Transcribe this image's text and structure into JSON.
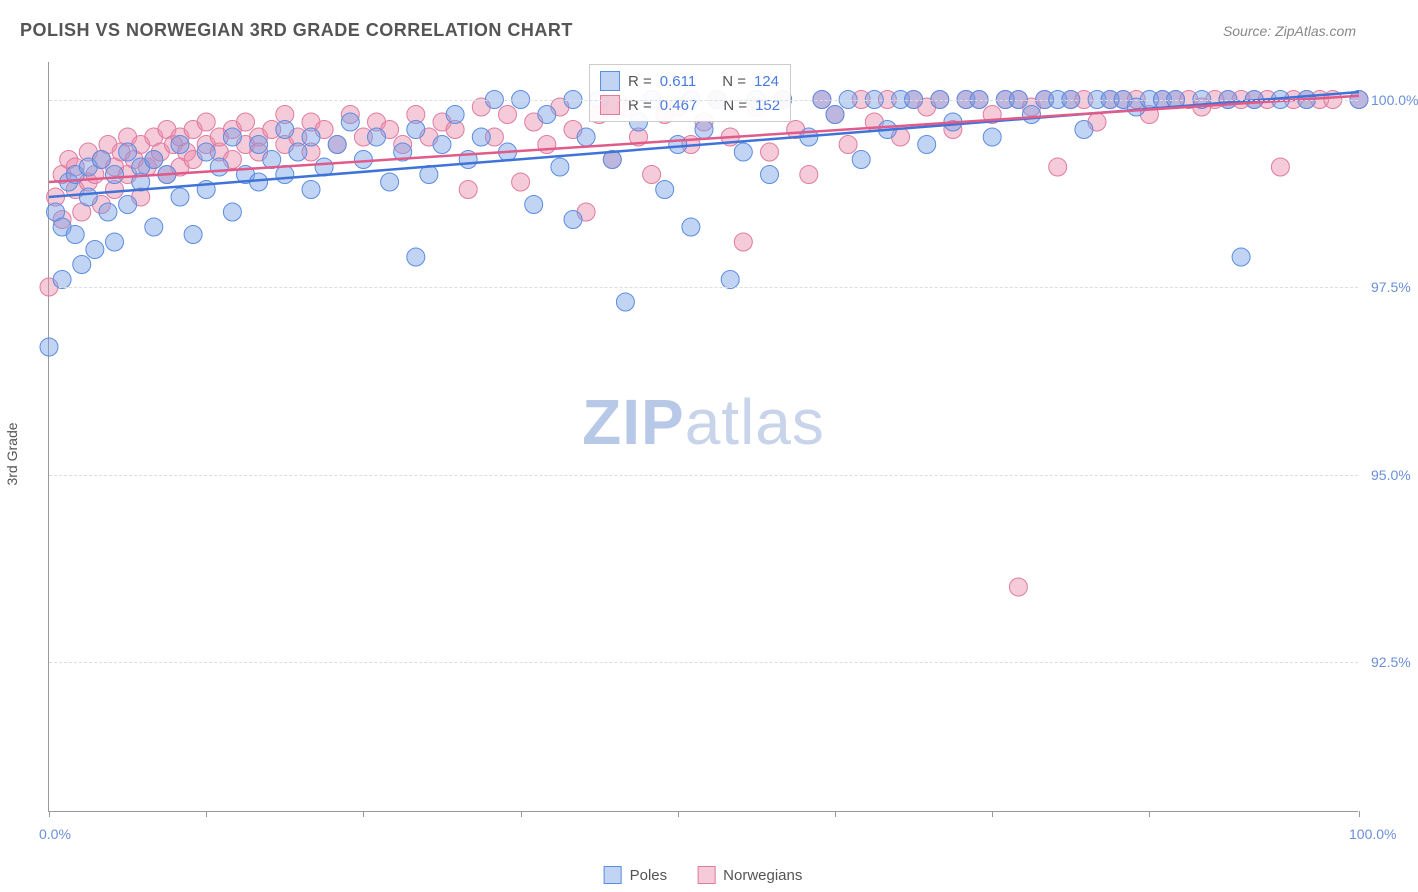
{
  "header": {
    "title": "POLISH VS NORWEGIAN 3RD GRADE CORRELATION CHART",
    "source": "Source: ZipAtlas.com"
  },
  "chart": {
    "type": "scatter",
    "ylabel": "3rd Grade",
    "xlim": [
      0,
      100
    ],
    "ylim": [
      90.5,
      100.5
    ],
    "yticks": [
      {
        "v": 92.5,
        "label": "92.5%"
      },
      {
        "v": 95.0,
        "label": "95.0%"
      },
      {
        "v": 97.5,
        "label": "97.5%"
      },
      {
        "v": 100.0,
        "label": "100.0%"
      }
    ],
    "xticks": [
      0,
      12,
      24,
      36,
      48,
      60,
      72,
      84,
      100
    ],
    "xlabels": [
      {
        "v": 0,
        "label": "0.0%"
      },
      {
        "v": 100,
        "label": "100.0%"
      }
    ],
    "grid_color": "#dddddd",
    "background_color": "#ffffff",
    "series": {
      "poles": {
        "label": "Poles",
        "color_fill": "rgba(120,160,230,0.45)",
        "color_stroke": "#5b8de0",
        "line_color": "#3f73d8",
        "marker_radius": 9,
        "R": "0.611",
        "N": "124",
        "trend": {
          "x1": 0,
          "y1": 98.7,
          "x2": 100,
          "y2": 100.1
        },
        "points": [
          [
            0,
            96.7
          ],
          [
            0.5,
            98.5
          ],
          [
            1,
            98.3
          ],
          [
            1,
            97.6
          ],
          [
            1.5,
            98.9
          ],
          [
            2,
            99.0
          ],
          [
            2,
            98.2
          ],
          [
            2.5,
            97.8
          ],
          [
            3,
            99.1
          ],
          [
            3,
            98.7
          ],
          [
            3.5,
            98.0
          ],
          [
            4,
            99.2
          ],
          [
            4.5,
            98.5
          ],
          [
            5,
            99.0
          ],
          [
            5,
            98.1
          ],
          [
            6,
            99.3
          ],
          [
            6,
            98.6
          ],
          [
            7,
            98.9
          ],
          [
            7,
            99.1
          ],
          [
            8,
            99.2
          ],
          [
            8,
            98.3
          ],
          [
            9,
            99.0
          ],
          [
            10,
            99.4
          ],
          [
            10,
            98.7
          ],
          [
            11,
            98.2
          ],
          [
            12,
            99.3
          ],
          [
            12,
            98.8
          ],
          [
            13,
            99.1
          ],
          [
            14,
            99.5
          ],
          [
            14,
            98.5
          ],
          [
            15,
            99.0
          ],
          [
            16,
            99.4
          ],
          [
            16,
            98.9
          ],
          [
            17,
            99.2
          ],
          [
            18,
            99.6
          ],
          [
            18,
            99.0
          ],
          [
            19,
            99.3
          ],
          [
            20,
            99.5
          ],
          [
            20,
            98.8
          ],
          [
            21,
            99.1
          ],
          [
            22,
            99.4
          ],
          [
            23,
            99.7
          ],
          [
            24,
            99.2
          ],
          [
            25,
            99.5
          ],
          [
            26,
            98.9
          ],
          [
            27,
            99.3
          ],
          [
            28,
            97.9
          ],
          [
            28,
            99.6
          ],
          [
            29,
            99.0
          ],
          [
            30,
            99.4
          ],
          [
            31,
            99.8
          ],
          [
            32,
            99.2
          ],
          [
            33,
            99.5
          ],
          [
            34,
            100.0
          ],
          [
            35,
            99.3
          ],
          [
            36,
            100.0
          ],
          [
            37,
            98.6
          ],
          [
            38,
            99.8
          ],
          [
            39,
            99.1
          ],
          [
            40,
            100.0
          ],
          [
            40,
            98.4
          ],
          [
            41,
            99.5
          ],
          [
            42,
            100.0
          ],
          [
            43,
            99.2
          ],
          [
            44,
            97.3
          ],
          [
            45,
            99.7
          ],
          [
            46,
            100.0
          ],
          [
            47,
            98.8
          ],
          [
            48,
            99.4
          ],
          [
            49,
            100.0
          ],
          [
            49,
            98.3
          ],
          [
            50,
            99.6
          ],
          [
            51,
            100.0
          ],
          [
            52,
            97.6
          ],
          [
            53,
            99.3
          ],
          [
            54,
            100.0
          ],
          [
            55,
            99.0
          ],
          [
            56,
            100.0
          ],
          [
            58,
            99.5
          ],
          [
            59,
            100.0
          ],
          [
            60,
            99.8
          ],
          [
            61,
            100.0
          ],
          [
            62,
            99.2
          ],
          [
            63,
            100.0
          ],
          [
            64,
            99.6
          ],
          [
            65,
            100.0
          ],
          [
            66,
            100.0
          ],
          [
            67,
            99.4
          ],
          [
            68,
            100.0
          ],
          [
            69,
            99.7
          ],
          [
            70,
            100.0
          ],
          [
            71,
            100.0
          ],
          [
            72,
            99.5
          ],
          [
            73,
            100.0
          ],
          [
            74,
            100.0
          ],
          [
            75,
            99.8
          ],
          [
            76,
            100.0
          ],
          [
            77,
            100.0
          ],
          [
            78,
            100.0
          ],
          [
            79,
            99.6
          ],
          [
            80,
            100.0
          ],
          [
            81,
            100.0
          ],
          [
            82,
            100.0
          ],
          [
            83,
            99.9
          ],
          [
            84,
            100.0
          ],
          [
            85,
            100.0
          ],
          [
            86,
            100.0
          ],
          [
            88,
            100.0
          ],
          [
            90,
            100.0
          ],
          [
            91,
            97.9
          ],
          [
            92,
            100.0
          ],
          [
            94,
            100.0
          ],
          [
            96,
            100.0
          ],
          [
            100,
            100.0
          ]
        ]
      },
      "norwegians": {
        "label": "Norwegians",
        "color_fill": "rgba(235,140,170,0.45)",
        "color_stroke": "#e07ba0",
        "line_color": "#e05a8a",
        "marker_radius": 9,
        "R": "0.467",
        "N": "152",
        "trend": {
          "x1": 0,
          "y1": 98.9,
          "x2": 100,
          "y2": 100.05
        },
        "points": [
          [
            0,
            97.5
          ],
          [
            0.5,
            98.7
          ],
          [
            1,
            99.0
          ],
          [
            1,
            98.4
          ],
          [
            1.5,
            99.2
          ],
          [
            2,
            98.8
          ],
          [
            2,
            99.1
          ],
          [
            2.5,
            98.5
          ],
          [
            3,
            99.3
          ],
          [
            3,
            98.9
          ],
          [
            3.5,
            99.0
          ],
          [
            4,
            99.2
          ],
          [
            4,
            98.6
          ],
          [
            4.5,
            99.4
          ],
          [
            5,
            99.1
          ],
          [
            5,
            98.8
          ],
          [
            5.5,
            99.3
          ],
          [
            6,
            99.5
          ],
          [
            6,
            99.0
          ],
          [
            6.5,
            99.2
          ],
          [
            7,
            99.4
          ],
          [
            7,
            98.7
          ],
          [
            7.5,
            99.1
          ],
          [
            8,
            99.5
          ],
          [
            8,
            99.2
          ],
          [
            8.5,
            99.3
          ],
          [
            9,
            99.6
          ],
          [
            9,
            99.0
          ],
          [
            9.5,
            99.4
          ],
          [
            10,
            99.5
          ],
          [
            10,
            99.1
          ],
          [
            10.5,
            99.3
          ],
          [
            11,
            99.6
          ],
          [
            11,
            99.2
          ],
          [
            12,
            99.4
          ],
          [
            12,
            99.7
          ],
          [
            13,
            99.3
          ],
          [
            13,
            99.5
          ],
          [
            14,
            99.6
          ],
          [
            14,
            99.2
          ],
          [
            15,
            99.4
          ],
          [
            15,
            99.7
          ],
          [
            16,
            99.5
          ],
          [
            16,
            99.3
          ],
          [
            17,
            99.6
          ],
          [
            18,
            99.4
          ],
          [
            18,
            99.8
          ],
          [
            19,
            99.5
          ],
          [
            20,
            99.7
          ],
          [
            20,
            99.3
          ],
          [
            21,
            99.6
          ],
          [
            22,
            99.4
          ],
          [
            23,
            99.8
          ],
          [
            24,
            99.5
          ],
          [
            25,
            99.7
          ],
          [
            26,
            99.6
          ],
          [
            27,
            99.4
          ],
          [
            28,
            99.8
          ],
          [
            29,
            99.5
          ],
          [
            30,
            99.7
          ],
          [
            31,
            99.6
          ],
          [
            32,
            98.8
          ],
          [
            33,
            99.9
          ],
          [
            34,
            99.5
          ],
          [
            35,
            99.8
          ],
          [
            36,
            98.9
          ],
          [
            37,
            99.7
          ],
          [
            38,
            99.4
          ],
          [
            39,
            99.9
          ],
          [
            40,
            99.6
          ],
          [
            41,
            98.5
          ],
          [
            42,
            99.8
          ],
          [
            43,
            99.2
          ],
          [
            44,
            99.9
          ],
          [
            45,
            99.5
          ],
          [
            46,
            99.0
          ],
          [
            47,
            99.8
          ],
          [
            48,
            99.9
          ],
          [
            49,
            99.4
          ],
          [
            50,
            99.7
          ],
          [
            51,
            100.0
          ],
          [
            52,
            99.5
          ],
          [
            53,
            98.1
          ],
          [
            54,
            99.9
          ],
          [
            55,
            99.3
          ],
          [
            56,
            100.0
          ],
          [
            57,
            99.6
          ],
          [
            58,
            99.0
          ],
          [
            59,
            100.0
          ],
          [
            60,
            99.8
          ],
          [
            61,
            99.4
          ],
          [
            62,
            100.0
          ],
          [
            63,
            99.7
          ],
          [
            64,
            100.0
          ],
          [
            65,
            99.5
          ],
          [
            66,
            100.0
          ],
          [
            67,
            99.9
          ],
          [
            68,
            100.0
          ],
          [
            69,
            99.6
          ],
          [
            70,
            100.0
          ],
          [
            71,
            100.0
          ],
          [
            72,
            99.8
          ],
          [
            73,
            100.0
          ],
          [
            74,
            93.5
          ],
          [
            74,
            100.0
          ],
          [
            75,
            99.9
          ],
          [
            76,
            100.0
          ],
          [
            77,
            99.1
          ],
          [
            78,
            100.0
          ],
          [
            79,
            100.0
          ],
          [
            80,
            99.7
          ],
          [
            81,
            100.0
          ],
          [
            82,
            100.0
          ],
          [
            83,
            100.0
          ],
          [
            84,
            99.8
          ],
          [
            85,
            100.0
          ],
          [
            86,
            100.0
          ],
          [
            87,
            100.0
          ],
          [
            88,
            99.9
          ],
          [
            89,
            100.0
          ],
          [
            90,
            100.0
          ],
          [
            91,
            100.0
          ],
          [
            92,
            100.0
          ],
          [
            93,
            100.0
          ],
          [
            94,
            99.1
          ],
          [
            95,
            100.0
          ],
          [
            96,
            100.0
          ],
          [
            97,
            100.0
          ],
          [
            98,
            100.0
          ],
          [
            100,
            100.0
          ]
        ]
      }
    },
    "watermark": {
      "zip": "ZIP",
      "atlas": "atlas"
    }
  },
  "legend_stats": {
    "r_label": "R =",
    "n_label": "N ="
  }
}
